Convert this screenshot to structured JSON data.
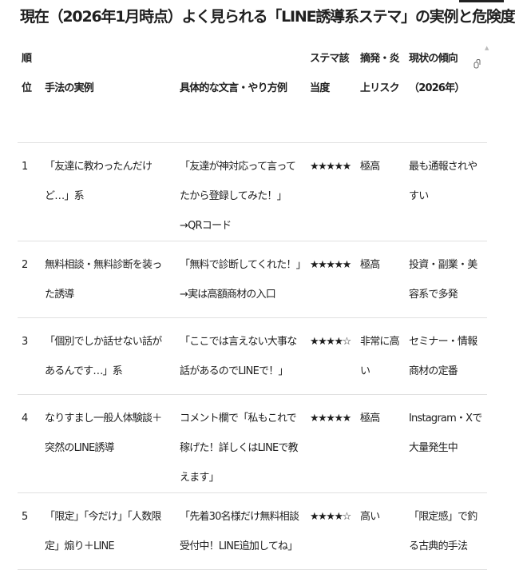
{
  "title": "現在（2026年1月時点）よく見られる「LINE誘導系ステマ」の実例と危険度",
  "headers": {
    "rank": "順位",
    "method": "手法の実例",
    "example": "具体的な文言・やり方例",
    "stealth": "ステマ該当度",
    "risk": "摘発・炎上リスク",
    "trend": "現状の傾向（2026年）"
  },
  "rows": [
    {
      "rank": "1",
      "method": "「友達に教わったんだけど…」系",
      "example": "「友達が神対応って言ってたから登録してみた！」→QRコード",
      "stealth": "★★★★★",
      "risk": "極高",
      "trend": "最も通報されやすい"
    },
    {
      "rank": "2",
      "method": "無料相談・無料診断を装った誘導",
      "example": "「無料で診断してくれた！」→実は高額商材の入口",
      "stealth": "★★★★★",
      "risk": "極高",
      "trend": "投資・副業・美容系で多発"
    },
    {
      "rank": "3",
      "method": "「個別でしか話せない話があるんです…」系",
      "example": "「ここでは言えない大事な話があるのでLINEで！」",
      "stealth": "★★★★☆",
      "risk": "非常に高い",
      "trend": "セミナー・情報商材の定番"
    },
    {
      "rank": "4",
      "method": "なりすまし一般人体験談＋突然のLINE誘導",
      "example": "コメント欄で「私もこれで稼げた！詳しくはLINEで教えます」",
      "stealth": "★★★★★",
      "risk": "極高",
      "trend": "Instagram・Xで大量発生中"
    },
    {
      "rank": "5",
      "method": "「限定」「今だけ」「人数限定」煽り＋LINE",
      "example": "「先着30名様だけ無料相談受付中！LINE追加してね」",
      "stealth": "★★★★☆",
      "risk": "高い",
      "trend": "「限定感」で釣る古典的手法"
    }
  ]
}
